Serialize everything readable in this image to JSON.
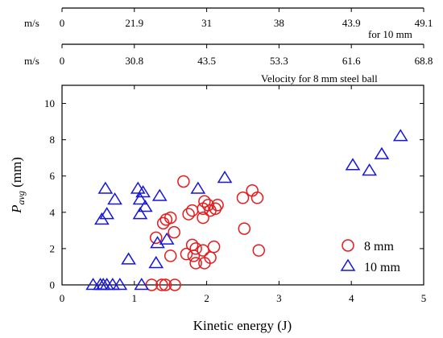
{
  "chart_data": {
    "type": "scatter",
    "xlabel": "Kinetic energy (J)",
    "ylabel_main": "P",
    "ylabel_sub": "avg",
    "ylabel_unit": " (mm)",
    "xlim": [
      0,
      5
    ],
    "ylim": [
      0,
      11
    ],
    "xticks": [
      0,
      1,
      2,
      3,
      4,
      5
    ],
    "yticks": [
      0,
      2,
      4,
      6,
      8,
      10
    ],
    "grid": false,
    "legend_position": "bottom-right",
    "series": [
      {
        "name": "8 mm",
        "marker": "circle",
        "color": "#e8191b",
        "points": [
          [
            1.24,
            0.0
          ],
          [
            1.38,
            0.0
          ],
          [
            1.43,
            0.0
          ],
          [
            1.56,
            0.0
          ],
          [
            1.3,
            2.6
          ],
          [
            1.5,
            1.6
          ],
          [
            1.55,
            2.9
          ],
          [
            1.68,
            5.7
          ],
          [
            1.4,
            3.4
          ],
          [
            1.44,
            3.6
          ],
          [
            1.5,
            3.7
          ],
          [
            1.72,
            1.7
          ],
          [
            1.8,
            2.2
          ],
          [
            1.82,
            1.6
          ],
          [
            1.85,
            1.2
          ],
          [
            1.85,
            2.0
          ],
          [
            1.95,
            1.9
          ],
          [
            1.97,
            1.2
          ],
          [
            2.05,
            1.5
          ],
          [
            2.1,
            2.1
          ],
          [
            1.75,
            3.9
          ],
          [
            1.8,
            4.1
          ],
          [
            1.95,
            3.7
          ],
          [
            1.95,
            4.2
          ],
          [
            1.97,
            4.6
          ],
          [
            2.02,
            4.4
          ],
          [
            2.05,
            4.1
          ],
          [
            2.12,
            4.2
          ],
          [
            2.15,
            4.4
          ],
          [
            2.5,
            4.8
          ],
          [
            2.52,
            3.1
          ],
          [
            2.63,
            5.2
          ],
          [
            2.7,
            4.8
          ],
          [
            2.72,
            1.9
          ]
        ]
      },
      {
        "name": "10 mm",
        "marker": "triangle",
        "color": "#1414e0",
        "points": [
          [
            0.43,
            0.0
          ],
          [
            0.53,
            0.0
          ],
          [
            0.57,
            0.0
          ],
          [
            0.62,
            0.0
          ],
          [
            0.7,
            0.0
          ],
          [
            0.8,
            0.0
          ],
          [
            1.1,
            0.0
          ],
          [
            0.55,
            3.6
          ],
          [
            0.62,
            3.9
          ],
          [
            0.6,
            5.3
          ],
          [
            0.73,
            4.7
          ],
          [
            1.05,
            5.3
          ],
          [
            1.08,
            4.7
          ],
          [
            1.08,
            3.9
          ],
          [
            1.12,
            5.1
          ],
          [
            1.15,
            4.3
          ],
          [
            0.92,
            1.4
          ],
          [
            1.3,
            1.2
          ],
          [
            1.32,
            2.3
          ],
          [
            1.45,
            2.5
          ],
          [
            1.35,
            4.9
          ],
          [
            1.88,
            5.3
          ],
          [
            2.25,
            5.9
          ],
          [
            4.02,
            6.6
          ],
          [
            4.25,
            6.3
          ],
          [
            4.42,
            7.2
          ],
          [
            4.68,
            8.2
          ]
        ]
      }
    ],
    "secondary_axes": [
      {
        "unit": "m/s",
        "label": "Velocity for 8 mm steel ball",
        "ticks": [
          {
            "energy": 0,
            "label": "0"
          },
          {
            "energy": 1,
            "label": "30.8"
          },
          {
            "energy": 2,
            "label": "43.5"
          },
          {
            "energy": 3,
            "label": "53.3"
          },
          {
            "energy": 4,
            "label": "61.6"
          },
          {
            "energy": 5,
            "label": "68.8"
          }
        ]
      },
      {
        "unit": "m/s",
        "label": "for 10 mm",
        "ticks": [
          {
            "energy": 0,
            "label": "0"
          },
          {
            "energy": 1,
            "label": "21.9"
          },
          {
            "energy": 2,
            "label": "31"
          },
          {
            "energy": 3,
            "label": "38"
          },
          {
            "energy": 4,
            "label": "43.9"
          },
          {
            "energy": 5,
            "label": "49.1"
          }
        ]
      }
    ]
  }
}
